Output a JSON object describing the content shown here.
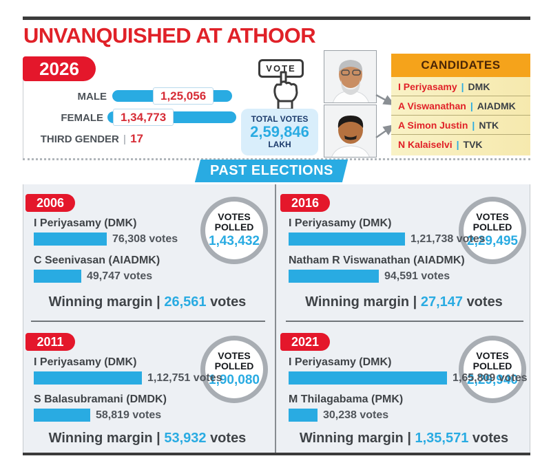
{
  "title": "UNVANQUISHED AT ATHOOR",
  "pipe": "|",
  "colors": {
    "accent_red": "#e02128",
    "accent_blue": "#29abe2",
    "gold": "#f5a31b",
    "navy": "#1b3a6b"
  },
  "electorate": {
    "year_badge": "2026",
    "rows": [
      {
        "label": "MALE",
        "value": "1,25,056",
        "votes": 125056
      },
      {
        "label": "FEMALE",
        "value": "1,34,773",
        "votes": 134773
      },
      {
        "label": "THIRD GENDER",
        "value": "17"
      }
    ],
    "vote_button_label": "VOTE",
    "total_votes_label": "TOTAL VOTES",
    "total_votes_value": "2,59,846",
    "total_votes_unit": "LAKH"
  },
  "candidates_panel": {
    "header": "CANDIDATES",
    "items": [
      {
        "name": "I Periyasamy",
        "party": "DMK"
      },
      {
        "name": "A Viswanathan",
        "party": "AIADMK"
      },
      {
        "name": "A Simon Justin",
        "party": "NTK"
      },
      {
        "name": "N Kalaiselvi",
        "party": "TVK"
      }
    ]
  },
  "past_elections": {
    "banner": "PAST ELECTIONS",
    "votes_polled_label": "VOTES POLLED",
    "winning_margin_label": "Winning margin",
    "votes_suffix": "votes",
    "elections": [
      {
        "year": "2006",
        "votes_polled": "1,43,432",
        "winning_margin": "26,561",
        "candidates": [
          {
            "name": "I Periyasamy (DMK)",
            "votes_label": "76,308 votes",
            "votes": 76308
          },
          {
            "name": "C Seenivasan (AIADMK)",
            "votes_label": "49,747 votes",
            "votes": 49747
          }
        ]
      },
      {
        "year": "2016",
        "votes_polled": "2,29,495",
        "winning_margin": "27,147",
        "candidates": [
          {
            "name": "I Periyasamy (DMK)",
            "votes_label": "1,21,738 votes",
            "votes": 121738
          },
          {
            "name": "Natham R Viswanathan (AIADMK)",
            "votes_label": "94,591 votes",
            "votes": 94591
          }
        ]
      },
      {
        "year": "2011",
        "votes_polled": "1,90,080",
        "winning_margin": "53,932",
        "candidates": [
          {
            "name": "I Periyasamy (DMK)",
            "votes_label": "1,12,751 votes",
            "votes": 112751
          },
          {
            "name": "S Balasubramani (DMDK)",
            "votes_label": "58,819 votes",
            "votes": 58819
          }
        ]
      },
      {
        "year": "2021",
        "votes_polled": "2,29,940",
        "winning_margin": "1,35,571",
        "candidates": [
          {
            "name": "I Periyasamy (DMK)",
            "votes_label": "1,65,809 votes",
            "votes": 165809
          },
          {
            "name": "M Thilagabama (PMK)",
            "votes_label": "30,238 votes",
            "votes": 30238
          }
        ]
      }
    ]
  },
  "chart_data": [
    {
      "type": "bar",
      "title": "2026 electorate",
      "categories": [
        "Male",
        "Female",
        "Third gender"
      ],
      "values": [
        125056,
        134773,
        17
      ],
      "total_votes": 259846,
      "total_votes_display": "2,59,846 LAKH"
    },
    {
      "type": "bar",
      "title": "2006",
      "categories": [
        "I Periyasamy (DMK)",
        "C Seenivasan (AIADMK)"
      ],
      "values": [
        76308,
        49747
      ],
      "votes_polled": 143432,
      "winning_margin": 26561
    },
    {
      "type": "bar",
      "title": "2011",
      "categories": [
        "I Periyasamy (DMK)",
        "S Balasubramani (DMDK)"
      ],
      "values": [
        112751,
        58819
      ],
      "votes_polled": 190080,
      "winning_margin": 53932
    },
    {
      "type": "bar",
      "title": "2016",
      "categories": [
        "I Periyasamy (DMK)",
        "Natham R Viswanathan (AIADMK)"
      ],
      "values": [
        121738,
        94591
      ],
      "votes_polled": 229495,
      "winning_margin": 27147
    },
    {
      "type": "bar",
      "title": "2021",
      "categories": [
        "I Periyasamy (DMK)",
        "M Thilagabama (PMK)"
      ],
      "values": [
        165809,
        30238
      ],
      "votes_polled": 229940,
      "winning_margin": 135571
    }
  ]
}
